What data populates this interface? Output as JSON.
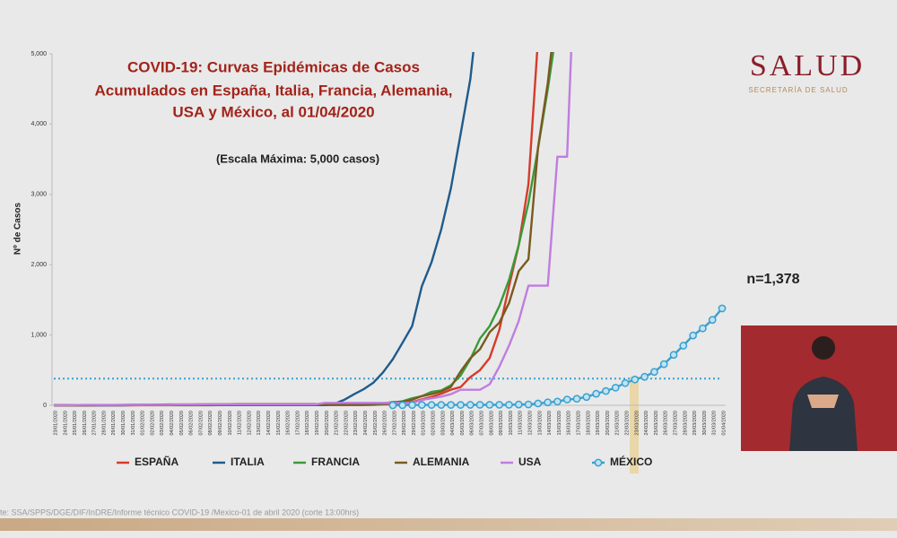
{
  "header": {
    "brand": "SALUD",
    "subtitle": "SECRETARÍA DE SALUD"
  },
  "note": "n=1,378",
  "source": "te: SSA/SPPS/DGE/DIF/InDRE/Informe técnico COVID-19 /Mexico-01 de abril 2020 (corte 13:00hrs)",
  "chart_data": {
    "type": "line",
    "title": [
      "COVID-19: Curvas Epidémicas de Casos",
      "Acumulados en España, Italia, Francia, Alemania,",
      "USA y México, al 01/04/2020"
    ],
    "subtitle": "(Escala Máxima: 5,000 casos)",
    "y_label": "Nº de Casos",
    "categories": [
      "23/01/2020",
      "24/01/2020",
      "25/01/2020",
      "26/01/2020",
      "27/01/2020",
      "28/01/2020",
      "29/01/2020",
      "30/01/2020",
      "31/01/2020",
      "01/02/2020",
      "02/02/2020",
      "03/02/2020",
      "04/02/2020",
      "05/02/2020",
      "06/02/2020",
      "07/02/2020",
      "08/02/2020",
      "09/02/2020",
      "10/02/2020",
      "11/02/2020",
      "12/02/2020",
      "13/02/2020",
      "14/02/2020",
      "15/02/2020",
      "16/02/2020",
      "17/02/2020",
      "18/02/2020",
      "19/02/2020",
      "20/02/2020",
      "21/02/2020",
      "22/02/2020",
      "23/02/2020",
      "24/02/2020",
      "25/02/2020",
      "26/02/2020",
      "27/02/2020",
      "28/02/2020",
      "29/02/2020",
      "01/03/2020",
      "02/03/2020",
      "03/03/2020",
      "04/03/2020",
      "05/03/2020",
      "06/03/2020",
      "07/03/2020",
      "08/03/2020",
      "09/03/2020",
      "10/03/2020",
      "11/03/2020",
      "12/03/2020",
      "13/03/2020",
      "14/03/2020",
      "15/03/2020",
      "16/03/2020",
      "17/03/2020",
      "18/03/2020",
      "19/03/2020",
      "20/03/2020",
      "21/03/2020",
      "22/03/2020",
      "23/03/2020",
      "24/03/2020",
      "25/03/2020",
      "26/03/2020",
      "27/03/2020",
      "28/03/2020",
      "29/03/2020",
      "30/03/2020",
      "31/03/2020",
      "01/04/2020"
    ],
    "series": [
      {
        "name": "ESPAÑA",
        "color": "#d63b2a",
        "values": [
          0,
          0,
          0,
          0,
          0,
          0,
          0,
          0,
          0,
          1,
          1,
          1,
          1,
          1,
          1,
          1,
          1,
          2,
          2,
          2,
          2,
          2,
          2,
          2,
          2,
          2,
          2,
          2,
          2,
          2,
          2,
          2,
          2,
          6,
          13,
          15,
          32,
          45,
          84,
          120,
          165,
          222,
          259,
          400,
          500,
          673,
          1073,
          1695,
          2277,
          3146,
          5232,
          null,
          null,
          null,
          null,
          null,
          null,
          null,
          null,
          null,
          null,
          null,
          null,
          null,
          null,
          null,
          null,
          null,
          null,
          null
        ]
      },
      {
        "name": "ITALIA",
        "color": "#1f5b8c",
        "values": [
          0,
          0,
          0,
          0,
          0,
          0,
          0,
          0,
          2,
          2,
          2,
          2,
          2,
          2,
          2,
          3,
          3,
          3,
          3,
          3,
          3,
          3,
          3,
          3,
          3,
          3,
          3,
          3,
          3,
          20,
          79,
          157,
          229,
          323,
          470,
          655,
          889,
          1128,
          1694,
          2036,
          2502,
          3089,
          3858,
          4636,
          5883,
          null,
          null,
          null,
          null,
          null,
          null,
          null,
          null,
          null,
          null,
          null,
          null,
          null,
          null,
          null,
          null,
          null,
          null,
          null,
          null,
          null,
          null,
          null,
          null,
          null
        ]
      },
      {
        "name": "FRANCIA",
        "color": "#3a9a3a",
        "values": [
          0,
          2,
          3,
          3,
          3,
          3,
          4,
          5,
          6,
          6,
          6,
          6,
          6,
          6,
          6,
          6,
          11,
          11,
          11,
          11,
          11,
          11,
          11,
          12,
          12,
          12,
          12,
          12,
          12,
          12,
          12,
          12,
          12,
          12,
          18,
          38,
          57,
          100,
          130,
          191,
          212,
          285,
          423,
          653,
          949,
          1126,
          1412,
          1784,
          2281,
          2876,
          3661,
          4499,
          5423,
          null,
          null,
          null,
          null,
          null,
          null,
          null,
          null,
          null,
          null,
          null,
          null,
          null,
          null,
          null,
          null,
          null
        ]
      },
      {
        "name": "ALEMANIA",
        "color": "#7a5a1e",
        "values": [
          0,
          0,
          0,
          0,
          0,
          4,
          4,
          4,
          5,
          8,
          8,
          10,
          12,
          12,
          12,
          13,
          13,
          13,
          13,
          16,
          16,
          16,
          16,
          16,
          16,
          16,
          16,
          16,
          16,
          16,
          16,
          16,
          16,
          17,
          27,
          46,
          48,
          79,
          130,
          159,
          196,
          262,
          482,
          670,
          799,
          1040,
          1176,
          1457,
          1908,
          2078,
          3675,
          4585,
          5795,
          null,
          null,
          null,
          null,
          null,
          null,
          null,
          null,
          null,
          null,
          null,
          null,
          null,
          null,
          null,
          null,
          null
        ]
      },
      {
        "name": "USA",
        "color": "#c07de0",
        "values": [
          1,
          1,
          2,
          5,
          5,
          5,
          5,
          5,
          7,
          7,
          8,
          8,
          8,
          12,
          12,
          12,
          12,
          12,
          12,
          12,
          12,
          12,
          12,
          12,
          12,
          12,
          12,
          12,
          35,
          35,
          35,
          35,
          35,
          35,
          35,
          35,
          35,
          35,
          75,
          100,
          124,
          158,
          221,
          221,
          221,
          300,
          550,
          850,
          1200,
          1701,
          1701,
          1701,
          3536,
          3536,
          7038,
          null,
          null,
          null,
          null,
          null,
          null,
          null,
          null,
          null,
          null,
          null,
          null,
          null,
          null,
          null
        ]
      },
      {
        "name": "MÉXICO",
        "color": "#3aa0d0",
        "marker": "circle",
        "values": [
          null,
          null,
          null,
          null,
          null,
          null,
          null,
          null,
          null,
          null,
          null,
          null,
          null,
          null,
          null,
          null,
          null,
          null,
          null,
          null,
          null,
          null,
          null,
          null,
          null,
          null,
          null,
          null,
          null,
          null,
          null,
          null,
          null,
          null,
          null,
          0,
          1,
          4,
          5,
          5,
          5,
          5,
          5,
          6,
          7,
          7,
          7,
          7,
          11,
          12,
          26,
          41,
          53,
          82,
          93,
          118,
          164,
          203,
          251,
          316,
          367,
          405,
          475,
          585,
          717,
          848,
          993,
          1094,
          1215,
          1378
        ]
      }
    ],
    "reference_line": 380,
    "ylim": [
      0,
      5000
    ],
    "yticks": [
      0,
      {
        "value": 1000,
        "label": "1,000"
      },
      {
        "value": 2000,
        "label": "2,000"
      },
      {
        "value": 3000,
        "label": "3,000"
      },
      {
        "value": 4000,
        "label": "4,000"
      },
      {
        "value": 5000,
        "label": "5,000"
      }
    ],
    "legend": "bottom"
  }
}
